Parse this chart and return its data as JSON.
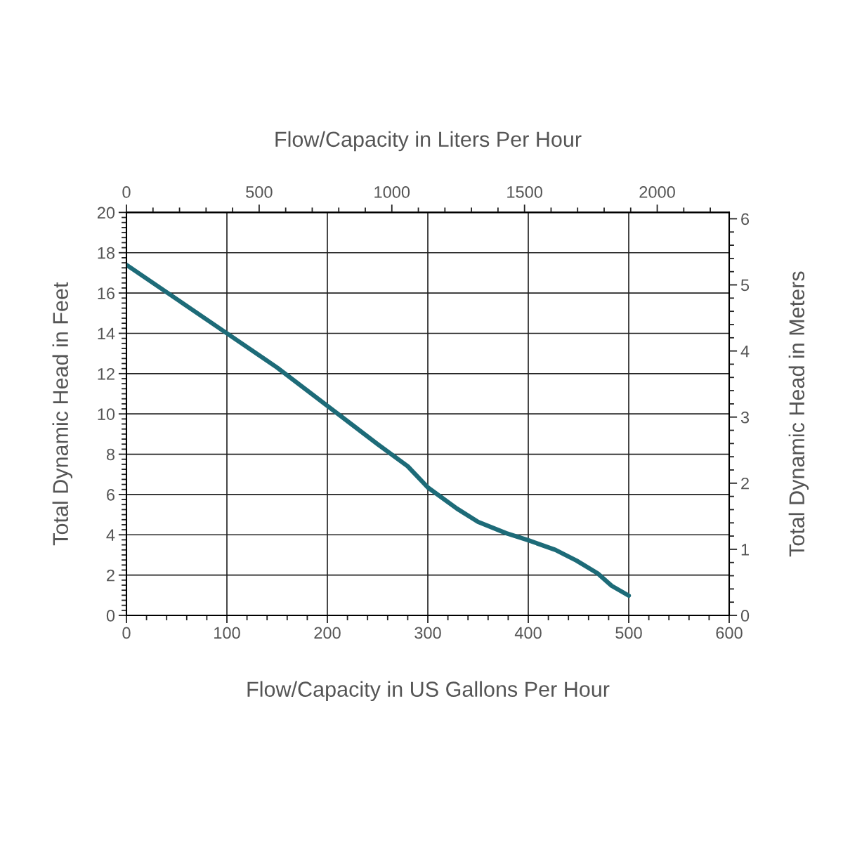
{
  "chart_data": {
    "type": "line",
    "xlabel": "Flow/Capacity in US Gallons Per Hour",
    "x2label": "Flow/Capacity in Liters Per Hour",
    "ylabel": "Total Dynamic Head in Feet",
    "y2label": "Total Dynamic Head in Meters",
    "xlim": [
      0,
      600
    ],
    "ylim": [
      0,
      20
    ],
    "x2lim": [
      0,
      2271.2
    ],
    "y2lim": [
      0,
      6.096
    ],
    "xticks": [
      0,
      {
        "value": 20,
        "label": null
      },
      {
        "value": 40,
        "label": null
      },
      {
        "value": 60,
        "label": null
      },
      {
        "value": 80,
        "label": null
      },
      100,
      {
        "value": 120,
        "label": null
      },
      {
        "value": 140,
        "label": null
      },
      {
        "value": 160,
        "label": null
      },
      {
        "value": 180,
        "label": null
      },
      200,
      {
        "value": 220,
        "label": null
      },
      {
        "value": 240,
        "label": null
      },
      {
        "value": 260,
        "label": null
      },
      {
        "value": 280,
        "label": null
      },
      300,
      {
        "value": 320,
        "label": null
      },
      {
        "value": 340,
        "label": null
      },
      {
        "value": 360,
        "label": null
      },
      {
        "value": 380,
        "label": null
      },
      400,
      {
        "value": 420,
        "label": null
      },
      {
        "value": 440,
        "label": null
      },
      {
        "value": 460,
        "label": null
      },
      {
        "value": 480,
        "label": null
      },
      500,
      {
        "value": 520,
        "label": null
      },
      {
        "value": 540,
        "label": null
      },
      {
        "value": 560,
        "label": null
      },
      {
        "value": 580,
        "label": null
      },
      600
    ],
    "x2ticks": [
      0,
      {
        "value": 100,
        "label": null
      },
      {
        "value": 200,
        "label": null
      },
      {
        "value": 300,
        "label": null
      },
      {
        "value": 400,
        "label": null
      },
      500,
      {
        "value": 600,
        "label": null
      },
      {
        "value": 700,
        "label": null
      },
      {
        "value": 800,
        "label": null
      },
      {
        "value": 900,
        "label": null
      },
      1000,
      {
        "value": 1100,
        "label": null
      },
      {
        "value": 1200,
        "label": null
      },
      {
        "value": 1300,
        "label": null
      },
      {
        "value": 1400,
        "label": null
      },
      1500,
      {
        "value": 1600,
        "label": null
      },
      {
        "value": 1700,
        "label": null
      },
      {
        "value": 1800,
        "label": null
      },
      {
        "value": 1900,
        "label": null
      },
      2000,
      {
        "value": 2100,
        "label": null
      },
      {
        "value": 2200,
        "label": null
      }
    ],
    "yticks": [
      0,
      {
        "value": 0.25,
        "label": null
      },
      {
        "value": 0.5,
        "label": null
      },
      {
        "value": 0.75,
        "label": null
      },
      {
        "value": 1,
        "label": null
      },
      {
        "value": 1.25,
        "label": null
      },
      {
        "value": 1.5,
        "label": null
      },
      {
        "value": 1.75,
        "label": null
      },
      2,
      {
        "value": 2.25,
        "label": null
      },
      {
        "value": 2.5,
        "label": null
      },
      {
        "value": 2.75,
        "label": null
      },
      {
        "value": 3,
        "label": null
      },
      {
        "value": 3.25,
        "label": null
      },
      {
        "value": 3.5,
        "label": null
      },
      {
        "value": 3.75,
        "label": null
      },
      4,
      {
        "value": 4.25,
        "label": null
      },
      {
        "value": 4.5,
        "label": null
      },
      {
        "value": 4.75,
        "label": null
      },
      {
        "value": 5,
        "label": null
      },
      {
        "value": 5.25,
        "label": null
      },
      {
        "value": 5.5,
        "label": null
      },
      {
        "value": 5.75,
        "label": null
      },
      6,
      {
        "value": 6.25,
        "label": null
      },
      {
        "value": 6.5,
        "label": null
      },
      {
        "value": 6.75,
        "label": null
      },
      {
        "value": 7,
        "label": null
      },
      {
        "value": 7.25,
        "label": null
      },
      {
        "value": 7.5,
        "label": null
      },
      {
        "value": 7.75,
        "label": null
      },
      8,
      {
        "value": 8.25,
        "label": null
      },
      {
        "value": 8.5,
        "label": null
      },
      {
        "value": 8.75,
        "label": null
      },
      {
        "value": 9,
        "label": null
      },
      {
        "value": 9.25,
        "label": null
      },
      {
        "value": 9.5,
        "label": null
      },
      {
        "value": 9.75,
        "label": null
      },
      10,
      {
        "value": 10.25,
        "label": null
      },
      {
        "value": 10.5,
        "label": null
      },
      {
        "value": 10.75,
        "label": null
      },
      {
        "value": 11,
        "label": null
      },
      {
        "value": 11.25,
        "label": null
      },
      {
        "value": 11.5,
        "label": null
      },
      {
        "value": 11.75,
        "label": null
      },
      12,
      {
        "value": 12.25,
        "label": null
      },
      {
        "value": 12.5,
        "label": null
      },
      {
        "value": 12.75,
        "label": null
      },
      {
        "value": 13,
        "label": null
      },
      {
        "value": 13.25,
        "label": null
      },
      {
        "value": 13.5,
        "label": null
      },
      {
        "value": 13.75,
        "label": null
      },
      14,
      {
        "value": 14.25,
        "label": null
      },
      {
        "value": 14.5,
        "label": null
      },
      {
        "value": 14.75,
        "label": null
      },
      {
        "value": 15,
        "label": null
      },
      {
        "value": 15.25,
        "label": null
      },
      {
        "value": 15.5,
        "label": null
      },
      {
        "value": 15.75,
        "label": null
      },
      16,
      {
        "value": 16.25,
        "label": null
      },
      {
        "value": 16.5,
        "label": null
      },
      {
        "value": 16.75,
        "label": null
      },
      {
        "value": 17,
        "label": null
      },
      {
        "value": 17.25,
        "label": null
      },
      {
        "value": 17.5,
        "label": null
      },
      {
        "value": 17.75,
        "label": null
      },
      18,
      {
        "value": 18.25,
        "label": null
      },
      {
        "value": 18.5,
        "label": null
      },
      {
        "value": 18.75,
        "label": null
      },
      {
        "value": 19,
        "label": null
      },
      {
        "value": 19.25,
        "label": null
      },
      {
        "value": 19.5,
        "label": null
      },
      {
        "value": 19.75,
        "label": null
      },
      20
    ],
    "y2ticks": [
      0,
      {
        "value": 0.2,
        "label": null
      },
      {
        "value": 0.4,
        "label": null
      },
      {
        "value": 0.6,
        "label": null
      },
      {
        "value": 0.8,
        "label": null
      },
      1,
      {
        "value": 1.2,
        "label": null
      },
      {
        "value": 1.4,
        "label": null
      },
      {
        "value": 1.6,
        "label": null
      },
      {
        "value": 1.8,
        "label": null
      },
      2,
      {
        "value": 2.2,
        "label": null
      },
      {
        "value": 2.4,
        "label": null
      },
      {
        "value": 2.6,
        "label": null
      },
      {
        "value": 2.8,
        "label": null
      },
      3,
      {
        "value": 3.2,
        "label": null
      },
      {
        "value": 3.4,
        "label": null
      },
      {
        "value": 3.6,
        "label": null
      },
      {
        "value": 3.8,
        "label": null
      },
      4,
      {
        "value": 4.2,
        "label": null
      },
      {
        "value": 4.4,
        "label": null
      },
      {
        "value": 4.6,
        "label": null
      },
      {
        "value": 4.8,
        "label": null
      },
      5,
      {
        "value": 5.2,
        "label": null
      },
      {
        "value": 5.4,
        "label": null
      },
      {
        "value": 5.6,
        "label": null
      },
      {
        "value": 5.8,
        "label": null
      },
      6
    ],
    "grid": true,
    "marker": "none",
    "line_style": "solid",
    "series": [
      {
        "color": "#1d6b78",
        "x": [
          0,
          50,
          100,
          150,
          200,
          250,
          280,
          300,
          329,
          350,
          378,
          400,
          427,
          448,
          469,
          483,
          500
        ],
        "values": [
          17.4,
          15.7,
          14.0,
          12.3,
          10.4,
          8.5,
          7.4,
          6.35,
          5.3,
          4.64,
          4.08,
          3.73,
          3.25,
          2.72,
          2.09,
          1.47,
          0.98
        ]
      }
    ]
  }
}
